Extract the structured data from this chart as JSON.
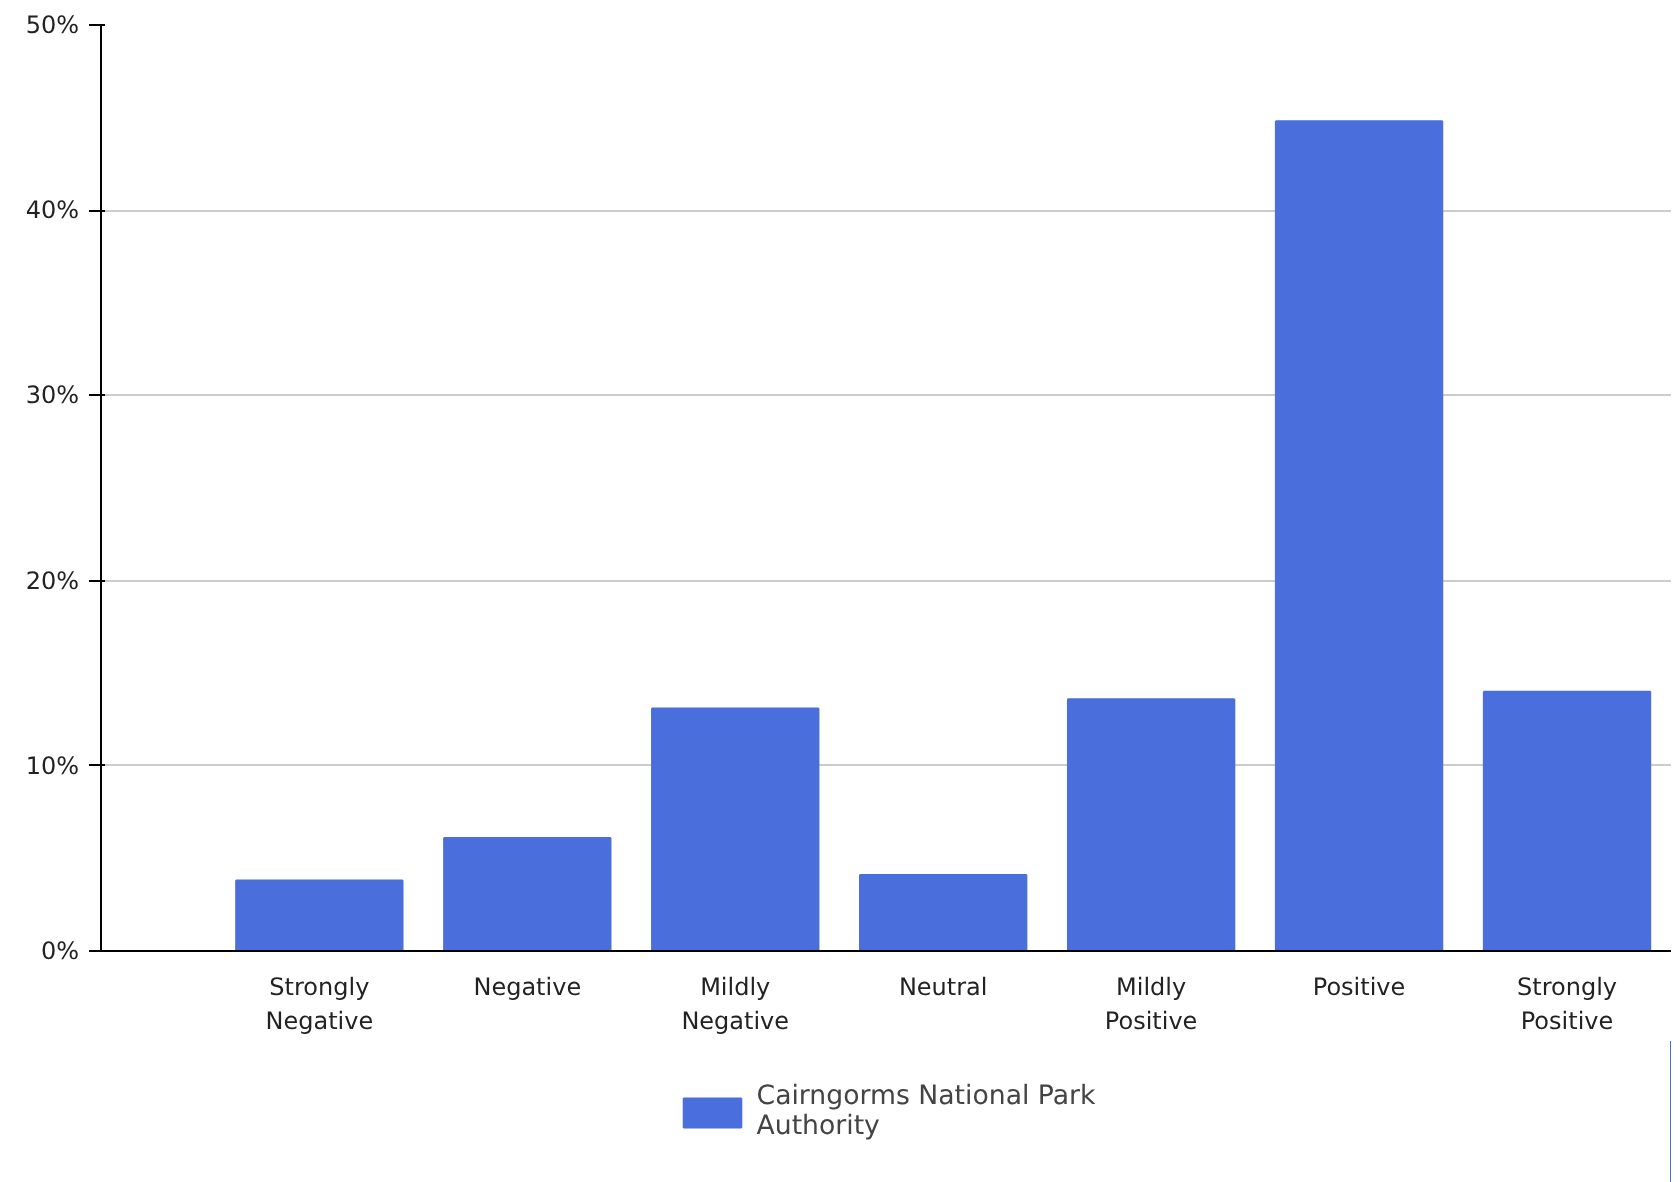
{
  "chart_data": {
    "type": "bar",
    "categories": [
      "Strongly Negative",
      "Negative",
      "Mildly Negative",
      "Neutral",
      "Mildly Positive",
      "Positive",
      "Strongly Positive"
    ],
    "series": [
      {
        "name": "Cairngorms National Park Authority",
        "color": "#4a6fdc",
        "values": [
          3.8,
          6.1,
          13.1,
          4.1,
          13.6,
          44.8,
          14.0
        ]
      }
    ],
    "ylim": [
      0,
      50
    ],
    "yticks": [
      {
        "value": 0,
        "label": "0%"
      },
      {
        "value": 10,
        "label": "10%"
      },
      {
        "value": 20,
        "label": "20%"
      },
      {
        "value": 30,
        "label": "30%"
      },
      {
        "value": 40,
        "label": "40%"
      },
      {
        "value": 50,
        "label": "50%"
      }
    ],
    "grid": "y",
    "legend": "bottom"
  }
}
